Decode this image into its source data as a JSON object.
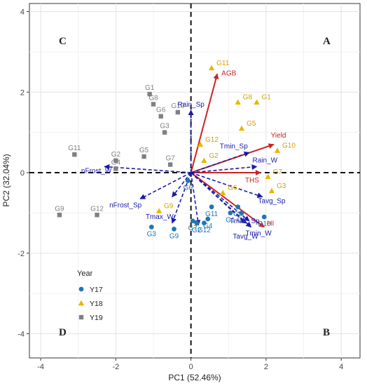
{
  "chart_data": {
    "type": "scatter",
    "subtype": "pca-biplot",
    "xlabel": "PC1 (52.46%)",
    "ylabel": "PC2 (32.04%)",
    "xlim": [
      -4.3,
      4.5
    ],
    "ylim": [
      -4.6,
      4.2
    ],
    "xticks": [
      -4,
      -2,
      0,
      2,
      4
    ],
    "yticks": [
      -4,
      -2,
      0,
      2,
      4
    ],
    "grid": true,
    "quadrants": [
      "A",
      "B",
      "C",
      "D"
    ],
    "legend": {
      "title": "Year",
      "placement": "bottom-left",
      "entries": [
        {
          "name": "Y17",
          "shape": "circle",
          "color": "#1f77b4"
        },
        {
          "name": "Y18",
          "shape": "triangle",
          "color": "#e6b800"
        },
        {
          "name": "Y19",
          "shape": "square",
          "color": "#808080"
        }
      ]
    },
    "series": [
      {
        "name": "Y17",
        "color": "#1f77b4",
        "label_color": "#1f77b4",
        "points": [
          {
            "label": "G1",
            "x": 1.05,
            "y": -1.0
          },
          {
            "label": "G2",
            "x": 0.15,
            "y": -1.25
          },
          {
            "label": "G3",
            "x": -1.05,
            "y": -1.35
          },
          {
            "label": "G4",
            "x": 0.45,
            "y": -1.15
          },
          {
            "label": "G5",
            "x": 1.35,
            "y": -1.0
          },
          {
            "label": "G6",
            "x": -0.08,
            "y": -0.2
          },
          {
            "label": "G7",
            "x": 0.05,
            "y": -1.2
          },
          {
            "label": "G8",
            "x": 1.25,
            "y": -0.85
          },
          {
            "label": "G9",
            "x": -0.45,
            "y": -1.4
          },
          {
            "label": "G10",
            "x": 1.95,
            "y": -1.1
          },
          {
            "label": "G11",
            "x": 0.55,
            "y": -0.85
          },
          {
            "label": "G12",
            "x": 0.35,
            "y": -1.25
          }
        ]
      },
      {
        "name": "Y18",
        "color": "#e6b800",
        "label_color": "#d4a000",
        "points": [
          {
            "label": "G1",
            "x": 1.75,
            "y": 1.75
          },
          {
            "label": "G2",
            "x": 0.35,
            "y": 0.3
          },
          {
            "label": "G3",
            "x": 2.15,
            "y": -0.45
          },
          {
            "label": "G5",
            "x": 1.35,
            "y": 1.1
          },
          {
            "label": "G6",
            "x": 0.85,
            "y": -0.5
          },
          {
            "label": "G7",
            "x": 2.05,
            "y": -0.1
          },
          {
            "label": "G8",
            "x": 1.25,
            "y": 1.75
          },
          {
            "label": "G9",
            "x": -0.85,
            "y": -0.95
          },
          {
            "label": "G10",
            "x": 2.3,
            "y": 0.55
          },
          {
            "label": "G11",
            "x": 0.55,
            "y": 2.6
          },
          {
            "label": "G12",
            "x": 0.25,
            "y": 0.7
          }
        ]
      },
      {
        "name": "Y19",
        "color": "#808080",
        "label_color": "#808080",
        "points": [
          {
            "label": "G1",
            "x": -1.1,
            "y": 1.95
          },
          {
            "label": "G2",
            "x": -2.0,
            "y": 0.3
          },
          {
            "label": "G3",
            "x": -0.7,
            "y": 1.0
          },
          {
            "label": "G4",
            "x": -2.0,
            "y": 0.1
          },
          {
            "label": "G5",
            "x": -1.25,
            "y": 0.4
          },
          {
            "label": "G6",
            "x": -0.8,
            "y": 1.4
          },
          {
            "label": "G7",
            "x": -0.55,
            "y": 0.2
          },
          {
            "label": "G8",
            "x": -1.0,
            "y": 1.7
          },
          {
            "label": "G9",
            "x": -3.5,
            "y": -1.05
          },
          {
            "label": "G10",
            "x": -0.35,
            "y": 1.5
          },
          {
            "label": "G11",
            "x": -3.1,
            "y": 0.45
          },
          {
            "label": "G12",
            "x": -2.5,
            "y": -1.05
          }
        ]
      }
    ],
    "vectors": [
      {
        "name": "AGB",
        "x": 0.7,
        "y": 2.45,
        "color": "#cc2222",
        "style": "solid"
      },
      {
        "name": "Yield",
        "x": 2.2,
        "y": 0.7,
        "color": "#cc2222",
        "style": "solid"
      },
      {
        "name": "THS",
        "x": 1.85,
        "y": 0.0,
        "color": "#cc2222",
        "style": "solid"
      },
      {
        "name": "HI",
        "x": 1.95,
        "y": -1.35,
        "color": "#cc2222",
        "style": "solid"
      },
      {
        "name": "Rain_Sp",
        "x": 0.0,
        "y": 1.55,
        "color": "#1a1aa6",
        "style": "dashed"
      },
      {
        "name": "Tmin_Sp",
        "x": 1.55,
        "y": 0.5,
        "color": "#1a1aa6",
        "style": "dashed"
      },
      {
        "name": "Rain_W",
        "x": 1.75,
        "y": 0.15,
        "color": "#1a1aa6",
        "style": "dashed"
      },
      {
        "name": "Tavg_Sp",
        "x": 1.9,
        "y": -0.6,
        "color": "#1a1aa6",
        "style": "dashed"
      },
      {
        "name": "Tmin_W",
        "x": 1.6,
        "y": -1.35,
        "color": "#1a1aa6",
        "style": "dashed"
      },
      {
        "name": "Tavg_W",
        "x": 1.45,
        "y": -1.25,
        "color": "#1a1aa6",
        "style": "dashed"
      },
      {
        "name": "Tmax_Sp",
        "x": 1.55,
        "y": -1.2,
        "color": "#1a1aa6",
        "style": "dashed"
      },
      {
        "name": "nFrost_W",
        "x": -2.3,
        "y": 0.15,
        "color": "#1a1aa6",
        "style": "dashed"
      },
      {
        "name": "nFrost_Sp",
        "x": -1.35,
        "y": -0.65,
        "color": "#1a1aa6",
        "style": "dashed"
      },
      {
        "name": "Tmax_W",
        "x": -0.5,
        "y": -1.25,
        "color": "#1a1aa6",
        "style": "dashed"
      },
      {
        "name": "v_unlabeled_1",
        "x": 0.2,
        "y": -1.3,
        "color": "#1a1aa6",
        "style": "dashed",
        "show_label": false
      },
      {
        "name": "v_unlabeled_2",
        "x": -0.5,
        "y": -0.6,
        "color": "#1a1aa6",
        "style": "dashed",
        "show_label": false
      }
    ]
  }
}
